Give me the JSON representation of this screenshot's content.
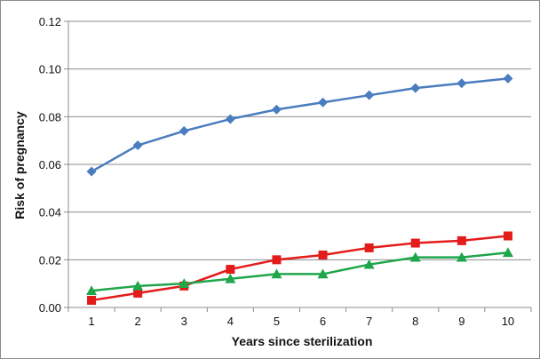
{
  "chart_data": {
    "type": "line",
    "title": "",
    "xlabel": "Years since sterilization",
    "ylabel": "Risk of pregnancy",
    "x": [
      1,
      2,
      3,
      4,
      5,
      6,
      7,
      8,
      9,
      10
    ],
    "xlim": [
      0.5,
      10.5
    ],
    "ylim": [
      0,
      0.12
    ],
    "yticks": [
      "0.00",
      "0.02",
      "0.04",
      "0.06",
      "0.08",
      "0.10",
      "0.12"
    ],
    "xticks": [
      "1",
      "2",
      "3",
      "4",
      "5",
      "6",
      "7",
      "8",
      "9",
      "10"
    ],
    "grid": "horizontal",
    "legend": "none",
    "series": [
      {
        "color": "#4a7dbf",
        "marker": "diamond",
        "values": [
          0.057,
          0.068,
          0.074,
          0.079,
          0.083,
          0.086,
          0.089,
          0.092,
          0.094,
          0.096
        ]
      },
      {
        "color": "#e31b1b",
        "marker": "square",
        "values": [
          0.003,
          0.006,
          0.009,
          0.016,
          0.02,
          0.022,
          0.025,
          0.027,
          0.028,
          0.03
        ]
      },
      {
        "color": "#1fa64a",
        "marker": "triangle",
        "values": [
          0.007,
          0.009,
          0.01,
          0.012,
          0.014,
          0.014,
          0.018,
          0.021,
          0.021,
          0.023
        ]
      }
    ]
  }
}
